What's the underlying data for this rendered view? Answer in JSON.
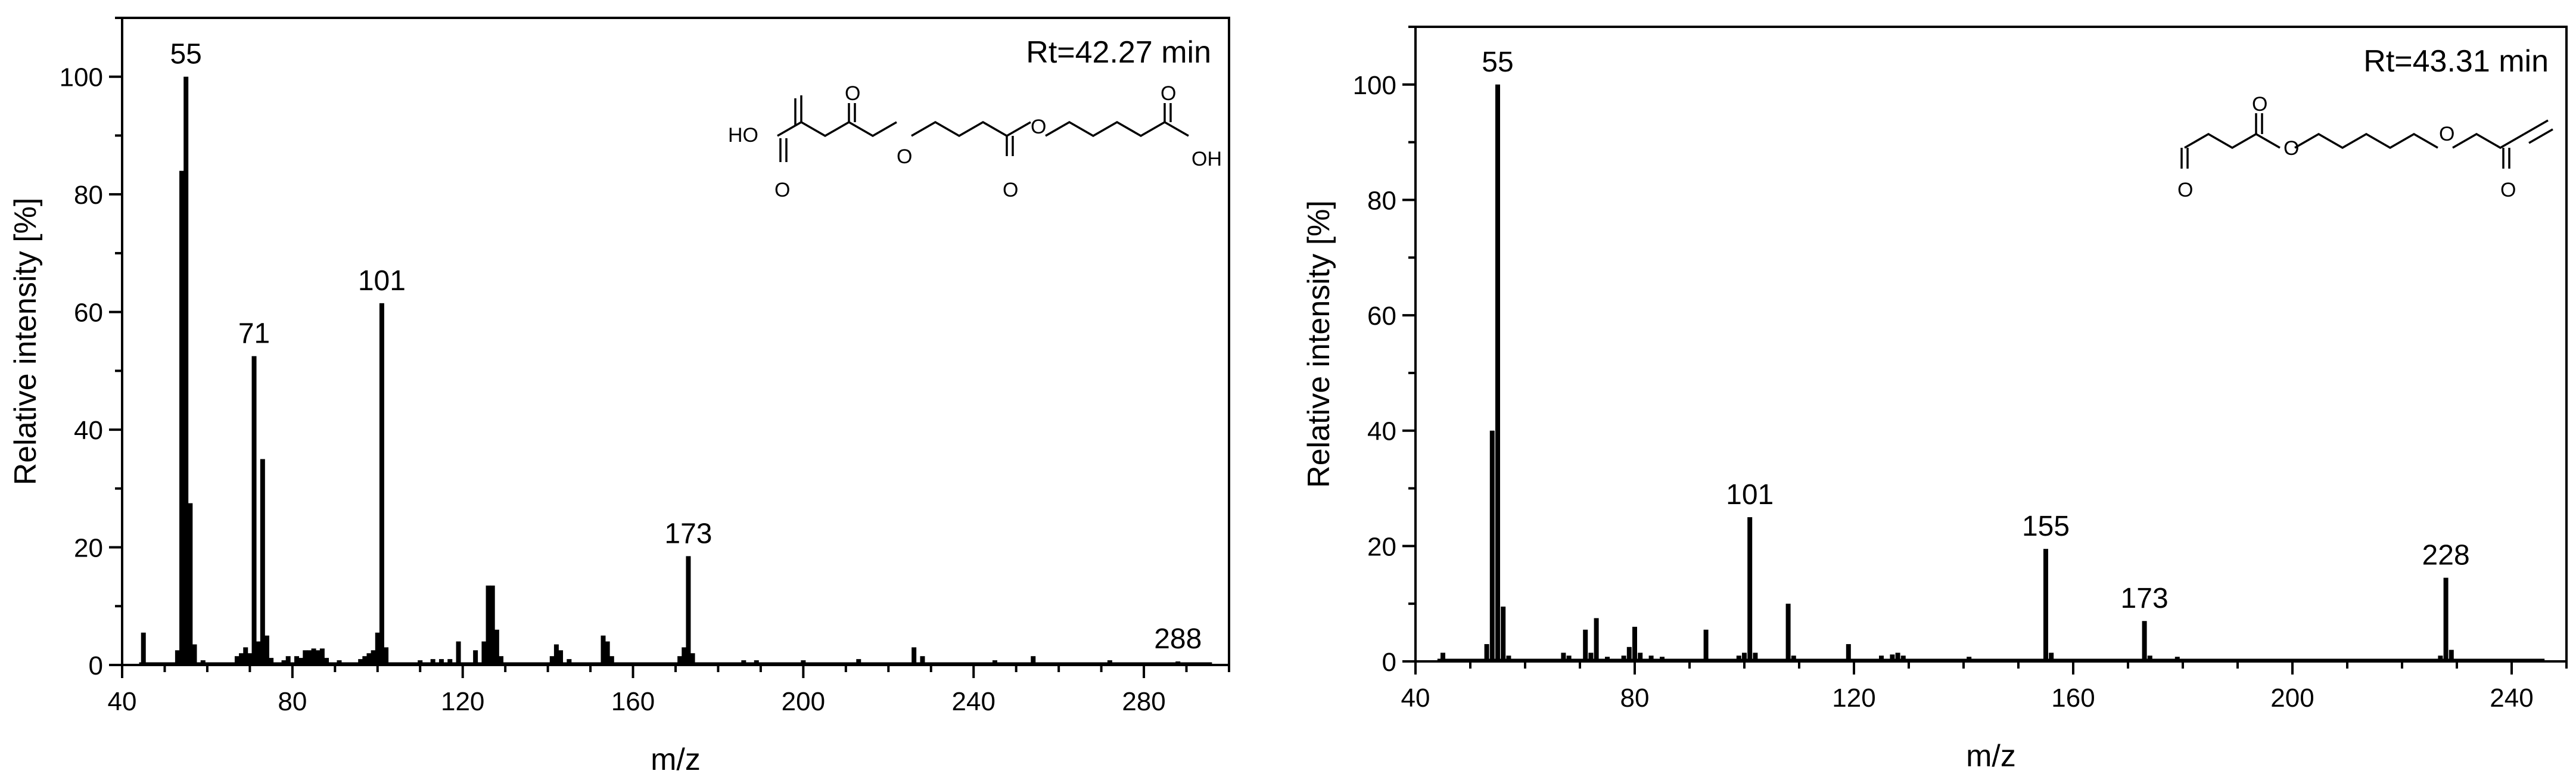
{
  "chart_data": [
    {
      "type": "bar",
      "xlabel": "m/z",
      "ylabel": "Relative intensity [%]",
      "xlim": [
        40,
        300
      ],
      "ylim": [
        0,
        110
      ],
      "xticks": [
        40,
        80,
        120,
        160,
        200,
        240,
        280
      ],
      "yticks": [
        0,
        20,
        40,
        60,
        80,
        100
      ],
      "annotation": "Rt=42.27 min",
      "structure_labels": [
        "HO",
        "O",
        "O",
        "O",
        "O",
        "O",
        "OH",
        "O"
      ],
      "peak_labels": [
        {
          "mz": 55,
          "text": "55"
        },
        {
          "mz": 71,
          "text": "71"
        },
        {
          "mz": 101,
          "text": "101"
        },
        {
          "mz": 173,
          "text": "173"
        },
        {
          "mz": 288,
          "text": "288"
        }
      ],
      "peaks": [
        [
          45,
          5.5
        ],
        [
          53,
          2.5
        ],
        [
          54,
          84
        ],
        [
          55,
          100
        ],
        [
          56,
          27.5
        ],
        [
          57,
          3.5
        ],
        [
          59,
          0.8
        ],
        [
          67,
          1.5
        ],
        [
          68,
          2
        ],
        [
          69,
          3
        ],
        [
          70,
          2
        ],
        [
          71,
          52.5
        ],
        [
          72,
          4
        ],
        [
          73,
          35
        ],
        [
          74,
          5
        ],
        [
          75,
          1.2
        ],
        [
          78,
          0.8
        ],
        [
          79,
          1.5
        ],
        [
          81,
          1.5
        ],
        [
          82,
          1.2
        ],
        [
          83,
          2.5
        ],
        [
          84,
          2.5
        ],
        [
          85,
          2.8
        ],
        [
          86,
          2.5
        ],
        [
          87,
          2.8
        ],
        [
          88,
          1.2
        ],
        [
          91,
          0.8
        ],
        [
          96,
          1
        ],
        [
          97,
          1.5
        ],
        [
          98,
          2
        ],
        [
          99,
          2.5
        ],
        [
          100,
          5.5
        ],
        [
          101,
          61.5
        ],
        [
          102,
          3
        ],
        [
          110,
          0.8
        ],
        [
          113,
          1
        ],
        [
          115,
          1
        ],
        [
          117,
          1
        ],
        [
          119,
          4
        ],
        [
          123,
          2.5
        ],
        [
          125,
          4
        ],
        [
          126,
          13.5
        ],
        [
          127,
          13.5
        ],
        [
          128,
          6
        ],
        [
          129,
          1.5
        ],
        [
          141,
          1.5
        ],
        [
          142,
          3.5
        ],
        [
          143,
          2.5
        ],
        [
          145,
          1
        ],
        [
          153,
          5
        ],
        [
          154,
          4
        ],
        [
          155,
          1.5
        ],
        [
          171,
          1.5
        ],
        [
          172,
          3
        ],
        [
          173,
          18.5
        ],
        [
          174,
          2
        ],
        [
          186,
          0.8
        ],
        [
          189,
          0.8
        ],
        [
          200,
          0.8
        ],
        [
          213,
          1
        ],
        [
          226,
          3
        ],
        [
          228,
          1.5
        ],
        [
          245,
          0.8
        ],
        [
          254,
          1.5
        ],
        [
          272,
          0.8
        ],
        [
          288,
          0.6
        ]
      ]
    },
    {
      "type": "bar",
      "xlabel": "m/z",
      "ylabel": "Relative intensity [%]",
      "xlim": [
        40,
        250
      ],
      "ylim": [
        0,
        110
      ],
      "xticks": [
        40,
        80,
        120,
        160,
        200,
        240
      ],
      "yticks": [
        0,
        20,
        40,
        60,
        80,
        100
      ],
      "annotation": "Rt=43.31 min",
      "structure_labels": [
        "O",
        "O",
        "O",
        "O",
        "O"
      ],
      "peak_labels": [
        {
          "mz": 55,
          "text": "55"
        },
        {
          "mz": 101,
          "text": "101"
        },
        {
          "mz": 155,
          "text": "155"
        },
        {
          "mz": 173,
          "text": "173"
        },
        {
          "mz": 228,
          "text": "228"
        }
      ],
      "peaks": [
        [
          45,
          1.5
        ],
        [
          53,
          3
        ],
        [
          54,
          40
        ],
        [
          55,
          100
        ],
        [
          56,
          9.5
        ],
        [
          57,
          1
        ],
        [
          67,
          1.5
        ],
        [
          68,
          1
        ],
        [
          71,
          5.5
        ],
        [
          72,
          1.5
        ],
        [
          73,
          7.5
        ],
        [
          75,
          0.8
        ],
        [
          78,
          1
        ],
        [
          79,
          2.5
        ],
        [
          80,
          6
        ],
        [
          81,
          1.5
        ],
        [
          83,
          1
        ],
        [
          85,
          0.8
        ],
        [
          93,
          5.5
        ],
        [
          99,
          1
        ],
        [
          100,
          1.5
        ],
        [
          101,
          25
        ],
        [
          102,
          1.5
        ],
        [
          108,
          10
        ],
        [
          109,
          1
        ],
        [
          119,
          3
        ],
        [
          125,
          1
        ],
        [
          127,
          1.2
        ],
        [
          128,
          1.5
        ],
        [
          129,
          1
        ],
        [
          141,
          0.8
        ],
        [
          155,
          19.5
        ],
        [
          156,
          1.5
        ],
        [
          173,
          7
        ],
        [
          174,
          1
        ],
        [
          179,
          0.8
        ],
        [
          227,
          1
        ],
        [
          228,
          14.5
        ],
        [
          229,
          2
        ]
      ]
    }
  ]
}
